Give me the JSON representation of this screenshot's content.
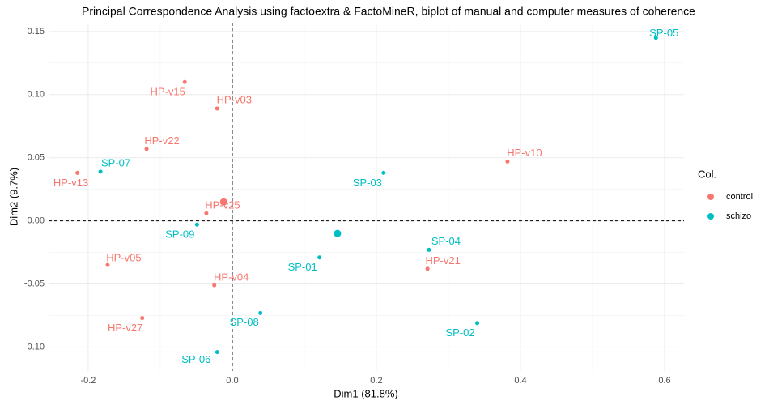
{
  "chart_data": {
    "type": "scatter",
    "title": "Principal Correspondence Analysis using factoextra & FactoMineR, biplot of manual and computer measures of coherence",
    "x_label": "Dim1 (81.8%)",
    "y_label": "Dim2 (9.7%)",
    "legend_title": "Col.",
    "xlim": [
      -0.255,
      0.627
    ],
    "ylim": [
      -0.119,
      0.157
    ],
    "xticks": [
      -0.2,
      {
        "value": 0,
        "label": "0.0"
      },
      0.2,
      0.4,
      0.6
    ],
    "yticks": [
      {
        "value": -0.1,
        "label": "-0.10"
      },
      -0.05,
      {
        "value": 0,
        "label": "0.00"
      },
      0.05,
      {
        "value": 0.1,
        "label": "0.10"
      },
      0.15
    ],
    "grid": true,
    "legend_position": "right",
    "series": [
      {
        "name": "control",
        "color": "#F8766D",
        "labels": [
          "HP-v15",
          "HP-v03",
          "HP-v22",
          "HP-v13",
          "HP-v25",
          "HP-v10",
          "HP-v05",
          "HP-v04",
          "HP-v21",
          "HP-v27"
        ],
        "x": [
          -0.066,
          -0.021,
          -0.119,
          -0.215,
          -0.036,
          0.382,
          -0.173,
          -0.025,
          0.271,
          -0.125
        ],
        "values": [
          0.11,
          0.089,
          0.057,
          0.038,
          0.006,
          0.047,
          -0.035,
          -0.051,
          -0.038,
          -0.077
        ],
        "centroid": [
          -0.012,
          0.015
        ]
      },
      {
        "name": "schizo",
        "color": "#00BFC4",
        "labels": [
          "SP-05",
          "SP-07",
          "SP-03",
          "SP-09",
          "SP-04",
          "SP-01",
          "SP-08",
          "SP-02",
          "SP-06"
        ],
        "x": [
          0.588,
          -0.183,
          0.21,
          -0.049,
          0.273,
          0.121,
          0.039,
          0.34,
          -0.021
        ],
        "values": [
          0.145,
          0.039,
          0.038,
          -0.003,
          -0.023,
          -0.029,
          -0.073,
          -0.081,
          -0.104
        ],
        "centroid": [
          0.146,
          -0.01
        ]
      }
    ]
  }
}
